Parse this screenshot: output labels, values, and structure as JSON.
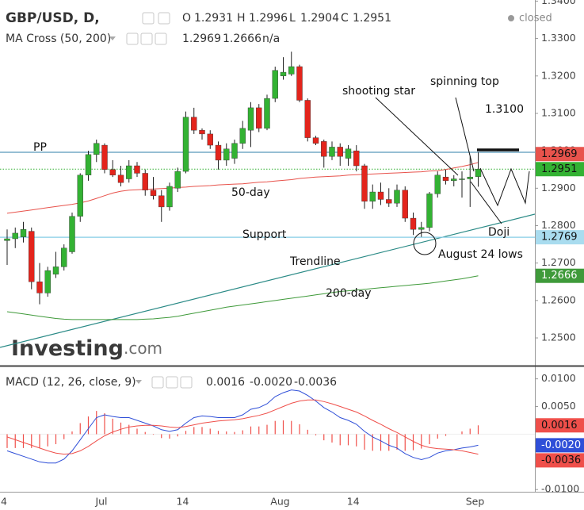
{
  "chart_data": {
    "type": "candlestick",
    "title": "GBP/USD, D,",
    "status": "closed",
    "ohlc_labels": [
      "O",
      "H",
      "L",
      "C"
    ],
    "categories": [
      "4",
      null,
      null,
      null,
      null,
      null,
      null,
      null,
      null,
      null,
      null,
      null,
      "Jul",
      null,
      null,
      null,
      null,
      null,
      null,
      null,
      null,
      null,
      "14",
      null,
      null,
      null,
      null,
      null,
      null,
      null,
      null,
      null,
      null,
      null,
      "Aug",
      null,
      null,
      null,
      null,
      null,
      null,
      null,
      null,
      "14",
      null,
      null,
      null,
      null,
      null,
      null,
      null,
      null,
      null,
      null,
      null,
      null,
      null,
      null,
      "Sep"
    ],
    "open": [
      1.276,
      1.2765,
      1.277,
      1.2785,
      1.265,
      1.262,
      1.267,
      1.269,
      1.273,
      1.2825,
      1.2935,
      1.299,
      1.3015,
      1.295,
      1.2935,
      1.2925,
      1.296,
      1.294,
      1.2895,
      1.288,
      1.285,
      1.29,
      1.2945,
      1.309,
      1.3055,
      1.3045,
      1.3015,
      1.2975,
      1.298,
      1.302,
      1.3055,
      1.3115,
      1.306,
      1.314,
      1.32,
      1.3205,
      1.3225,
      1.3135,
      1.3035,
      1.3025,
      1.2985,
      1.301,
      1.298,
      1.3,
      1.296,
      1.2865,
      1.289,
      1.287,
      1.286,
      1.2895,
      1.282,
      1.279,
      1.2795,
      1.2885,
      1.293,
      1.292,
      1.2925,
      1.2925,
      1.2931
    ],
    "high": [
      1.279,
      1.2795,
      1.281,
      1.2795,
      1.27,
      1.269,
      1.273,
      1.275,
      1.2835,
      1.294,
      1.3,
      1.303,
      1.302,
      1.2975,
      1.296,
      1.2975,
      1.297,
      1.295,
      1.293,
      1.2895,
      1.2915,
      1.2955,
      1.3105,
      1.3115,
      1.306,
      1.3055,
      1.3025,
      1.302,
      1.303,
      1.308,
      1.313,
      1.3125,
      1.315,
      1.3225,
      1.325,
      1.3265,
      1.323,
      1.314,
      1.304,
      1.303,
      1.3025,
      1.302,
      1.3015,
      1.3015,
      1.2965,
      1.291,
      1.2915,
      1.29,
      1.291,
      1.2905,
      1.2835,
      1.281,
      1.289,
      1.2945,
      1.295,
      1.2935,
      1.2945,
      1.2985,
      1.2996
    ],
    "low": [
      1.2695,
      1.274,
      1.2755,
      1.263,
      1.259,
      1.261,
      1.266,
      1.268,
      1.2725,
      1.281,
      1.292,
      1.297,
      1.294,
      1.293,
      1.2905,
      1.2915,
      1.293,
      1.288,
      1.287,
      1.281,
      1.284,
      1.289,
      1.294,
      1.3045,
      1.303,
      1.3005,
      1.295,
      1.296,
      1.2965,
      1.3005,
      1.301,
      1.305,
      1.3055,
      1.313,
      1.319,
      1.32,
      1.313,
      1.3025,
      1.3015,
      1.2955,
      1.2975,
      1.296,
      1.296,
      1.2945,
      1.2845,
      1.2845,
      1.2855,
      1.285,
      1.285,
      1.281,
      1.2775,
      1.277,
      1.2785,
      1.2875,
      1.291,
      1.2905,
      1.2875,
      1.285,
      1.2904
    ],
    "close": [
      1.2765,
      1.278,
      1.279,
      1.265,
      1.262,
      1.268,
      1.269,
      1.274,
      1.2825,
      1.2935,
      1.299,
      1.302,
      1.295,
      1.2935,
      1.2915,
      1.296,
      1.294,
      1.2895,
      1.288,
      1.285,
      1.2905,
      1.2945,
      1.309,
      1.3055,
      1.3045,
      1.3015,
      1.2975,
      1.3005,
      1.302,
      1.306,
      1.3115,
      1.306,
      1.314,
      1.3215,
      1.321,
      1.3225,
      1.3135,
      1.3035,
      1.302,
      1.2985,
      1.301,
      1.2985,
      1.3005,
      1.296,
      1.2865,
      1.289,
      1.287,
      1.286,
      1.2895,
      1.282,
      1.279,
      1.2795,
      1.2885,
      1.2935,
      1.292,
      1.2925,
      1.2925,
      1.293,
      1.2951
    ],
    "up_color": "#33b233",
    "down_color": "#e3241c",
    "ylim": [
      1.2428,
      1.3403
    ],
    "yticks": [
      {
        "value": 1.25,
        "label": "1.2500"
      },
      {
        "value": 1.26,
        "label": "1.2600"
      },
      {
        "value": 1.27,
        "label": "1.2700"
      },
      {
        "value": 1.28,
        "label": "1.2800"
      },
      {
        "value": 1.29,
        "label": "1.2900"
      },
      {
        "value": 1.3,
        "label": "1.3000"
      },
      {
        "value": 1.31,
        "label": "1.3100"
      },
      {
        "value": 1.32,
        "label": "1.3200"
      },
      {
        "value": 1.33,
        "label": "1.3300"
      },
      {
        "value": 1.34,
        "label": "1.3400"
      }
    ],
    "grid": false,
    "overlay_title": "MA Cross (50, 200)",
    "overlay_na": "n/a",
    "overlays": [
      {
        "name": "50-day",
        "color": "#e8534c",
        "values": [
          1.2833,
          1.2836,
          1.2839,
          1.2842,
          1.2845,
          1.2848,
          1.2851,
          1.2854,
          1.2857,
          1.2861,
          1.2866,
          1.2873,
          1.288,
          1.2887,
          1.2892,
          1.2895,
          1.2896,
          1.2897,
          1.2898,
          1.2899,
          1.29,
          1.2902,
          1.2903,
          1.2905,
          1.2906,
          1.2907,
          1.2909,
          1.291,
          1.2911,
          1.2912,
          1.2914,
          1.2916,
          1.2917,
          1.2919,
          1.2921,
          1.2923,
          1.2926,
          1.2928,
          1.293,
          1.2931,
          1.2932,
          1.2933,
          1.2935,
          1.2936,
          1.2937,
          1.2938,
          1.2939,
          1.294,
          1.2941,
          1.2942,
          1.2943,
          1.2944,
          1.2946,
          1.2947,
          1.295,
          1.2954,
          1.2958,
          1.2963,
          1.2969
        ]
      },
      {
        "name": "200-day",
        "color": "#3f9a3a",
        "values": [
          1.257,
          1.2567,
          1.2564,
          1.2561,
          1.2558,
          1.2555,
          1.2552,
          1.255,
          1.2549,
          1.2549,
          1.2549,
          1.2549,
          1.2549,
          1.2549,
          1.2549,
          1.2549,
          1.2549,
          1.255,
          1.2551,
          1.2553,
          1.2555,
          1.2558,
          1.2562,
          1.2566,
          1.257,
          1.2574,
          1.2578,
          1.2582,
          1.2585,
          1.2588,
          1.2591,
          1.2594,
          1.2597,
          1.26,
          1.2603,
          1.2606,
          1.2609,
          1.2612,
          1.2615,
          1.2618,
          1.2621,
          1.2624,
          1.2626,
          1.2628,
          1.263,
          1.2632,
          1.2634,
          1.2636,
          1.2638,
          1.264,
          1.2642,
          1.2644,
          1.2646,
          1.2649,
          1.2652,
          1.2655,
          1.2658,
          1.2662,
          1.2666
        ]
      }
    ],
    "pp_level": 1.2996,
    "support_level": 1.2769,
    "annotations": [
      "PP",
      "Support",
      "Trendline",
      "shooting star",
      "spinning top",
      "1.3100",
      "Doji",
      "August 24 lows"
    ],
    "watermark": [
      "Investing",
      ".com"
    ],
    "macd": {
      "title": "MACD (12, 26, close, 9)",
      "ylim": [
        -0.0104,
        0.0121
      ],
      "yticks": [
        {
          "value": 0.01,
          "label": "0.0100"
        },
        {
          "value": 0.005,
          "label": "0.0050"
        },
        {
          "value": -0.01,
          "label": "-0.0100"
        }
      ],
      "histogram": {
        "color": "#ef4f4a",
        "values": [
          -0.0025,
          -0.0025,
          -0.0025,
          -0.0025,
          -0.0025,
          -0.0022,
          -0.0018,
          -0.0009,
          0.0005,
          0.002,
          0.0032,
          0.0042,
          0.0038,
          0.0028,
          0.0021,
          0.0017,
          0.001,
          0.0004,
          -0.0001,
          -0.0007,
          -0.0008,
          -0.0004,
          0.0006,
          0.0013,
          0.0013,
          0.001,
          0.0006,
          0.0005,
          0.0004,
          0.0007,
          0.0014,
          0.0014,
          0.0017,
          0.0024,
          0.0025,
          0.0024,
          0.0018,
          0.0008,
          -0.0002,
          -0.0011,
          -0.0015,
          -0.002,
          -0.002,
          -0.0022,
          -0.0028,
          -0.003,
          -0.003,
          -0.003,
          -0.0028,
          -0.003,
          -0.0029,
          -0.0026,
          -0.0018,
          -0.0008,
          -0.0003,
          0.0,
          0.0005,
          0.001,
          0.0016
        ]
      },
      "series": [
        {
          "color": "#2f4fd8",
          "values": [
            -0.003,
            -0.0035,
            -0.004,
            -0.0045,
            -0.005,
            -0.0052,
            -0.0052,
            -0.0045,
            -0.003,
            -0.001,
            0.001,
            0.003,
            0.0035,
            0.0032,
            0.003,
            0.003,
            0.0025,
            0.002,
            0.0015,
            0.0008,
            0.0005,
            0.0008,
            0.002,
            0.003,
            0.0033,
            0.0032,
            0.003,
            0.003,
            0.003,
            0.0035,
            0.0045,
            0.0048,
            0.0055,
            0.0068,
            0.0075,
            0.008,
            0.0078,
            0.007,
            0.006,
            0.0048,
            0.004,
            0.003,
            0.0025,
            0.0018,
            0.0005,
            -0.0005,
            -0.0012,
            -0.002,
            -0.0025,
            -0.0035,
            -0.0042,
            -0.0046,
            -0.0042,
            -0.0034,
            -0.003,
            -0.0028,
            -0.0025,
            -0.0023,
            -0.002
          ],
          "value_labels": [
            null,
            null,
            null,
            null,
            null,
            null,
            null,
            null,
            null,
            null,
            null,
            null,
            null,
            null,
            null,
            null,
            null,
            null,
            null,
            null,
            null,
            null,
            null,
            null,
            null,
            null,
            null,
            null,
            null,
            null,
            null,
            null,
            null,
            null,
            null,
            null,
            null,
            null,
            null,
            null,
            null,
            null,
            null,
            null,
            null,
            null,
            null,
            null,
            null,
            null,
            null,
            null,
            null,
            null,
            null,
            null,
            null,
            null,
            "-0.0020"
          ]
        },
        {
          "color": "#ef4f4a",
          "values": [
            -0.0005,
            -0.001,
            -0.0015,
            -0.002,
            -0.0025,
            -0.003,
            -0.0034,
            -0.0036,
            -0.0035,
            -0.003,
            -0.0022,
            -0.0012,
            -0.0003,
            0.0004,
            0.0009,
            0.0013,
            0.0015,
            0.0016,
            0.0016,
            0.0015,
            0.0013,
            0.0012,
            0.0014,
            0.0017,
            0.002,
            0.0022,
            0.0024,
            0.0025,
            0.0026,
            0.0028,
            0.0031,
            0.0034,
            0.0038,
            0.0044,
            0.005,
            0.0056,
            0.006,
            0.0062,
            0.0062,
            0.0059,
            0.0055,
            0.005,
            0.0045,
            0.004,
            0.0033,
            0.0025,
            0.0018,
            0.001,
            0.0003,
            -0.0005,
            -0.0013,
            -0.002,
            -0.0024,
            -0.0026,
            -0.0027,
            -0.0028,
            -0.003,
            -0.0033,
            -0.0036
          ]
        }
      ]
    }
  }
}
